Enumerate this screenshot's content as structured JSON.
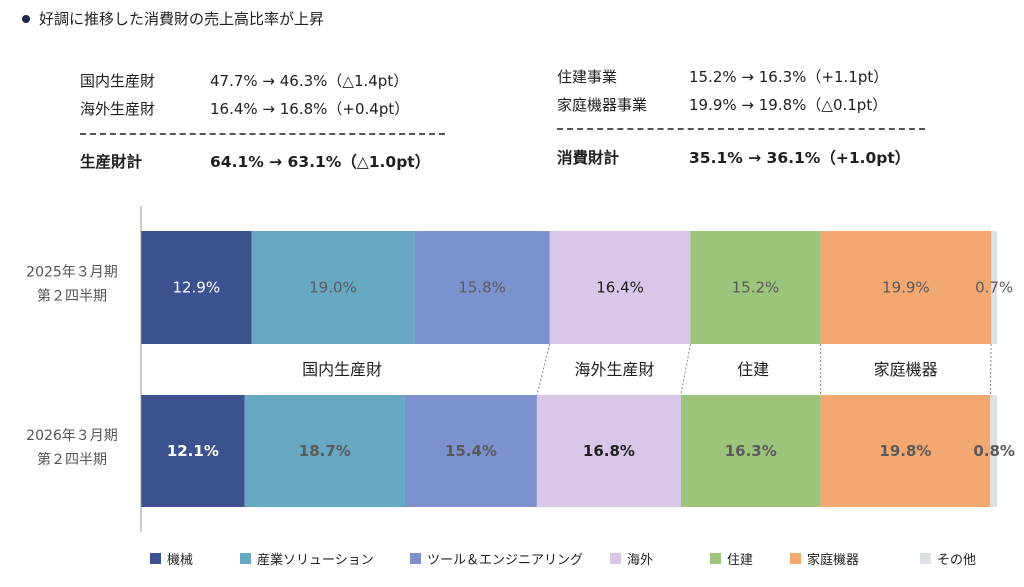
{
  "heading": "好調に推移した消費財の売上高比率が上昇",
  "summary": {
    "left": [
      {
        "label": "国内生産財",
        "text": "47.7% → 46.3%（△1.4pt）"
      },
      {
        "label": "海外生産財",
        "text": "16.4% → 16.8%（+0.4pt）"
      },
      {
        "label": "生産財計",
        "text": "64.1% → 63.1%（△1.0pt）"
      }
    ],
    "right": [
      {
        "label": "住建事業",
        "text": "15.2% → 16.3%（+1.1pt）"
      },
      {
        "label": "家庭機器事業",
        "text": "19.9% → 19.8%（△0.1pt）"
      },
      {
        "label": "消費財計",
        "text": "35.1% → 36.1%（+1.0pt）"
      }
    ]
  },
  "chart_data": {
    "type": "bar",
    "orientation": "horizontal",
    "stacked": true,
    "unit": "%",
    "xlim": [
      0,
      100
    ],
    "categories": [
      "2025年３月期\n第２四半期",
      "2026年３月期\n第２四半期"
    ],
    "series": [
      {
        "name": "機械",
        "color": "#3b5190",
        "values": [
          12.9,
          12.1
        ]
      },
      {
        "name": "産業ソリューション",
        "color": "#67a9c3",
        "values": [
          19.0,
          18.7
        ]
      },
      {
        "name": "ツール＆エンジニアリング",
        "color": "#7b92ce",
        "values": [
          15.8,
          15.4
        ]
      },
      {
        "name": "海外",
        "color": "#d9c7ea",
        "values": [
          16.4,
          16.8
        ]
      },
      {
        "name": "住建",
        "color": "#9cc47a",
        "values": [
          15.2,
          16.3
        ]
      },
      {
        "name": "家庭機器",
        "color": "#f2a870",
        "values": [
          19.9,
          19.8
        ]
      },
      {
        "name": "その他",
        "color": "#dde1e7",
        "values": [
          0.7,
          0.8
        ]
      }
    ],
    "data_labels": [
      [
        "12.9%",
        "19.0%",
        "15.8%",
        "16.4%",
        "15.2%",
        "19.9%",
        "0.7%"
      ],
      [
        "12.1%",
        "18.7%",
        "15.4%",
        "16.8%",
        "16.3%",
        "19.8%",
        "0.8%"
      ]
    ],
    "group_labels": [
      {
        "text": "国内生産財",
        "first": 0,
        "last": 2
      },
      {
        "text": "海外生産財",
        "first": 3,
        "last": 3
      },
      {
        "text": "住建",
        "first": 4,
        "last": 4
      },
      {
        "text": "家庭機器",
        "first": 5,
        "last": 5
      }
    ],
    "colors": {
      "label_light": "#ffffff",
      "label_mid": "#5a5a5a",
      "label_dark": "#1f1f1f",
      "axis": "#999999",
      "separator": "#888888"
    }
  }
}
